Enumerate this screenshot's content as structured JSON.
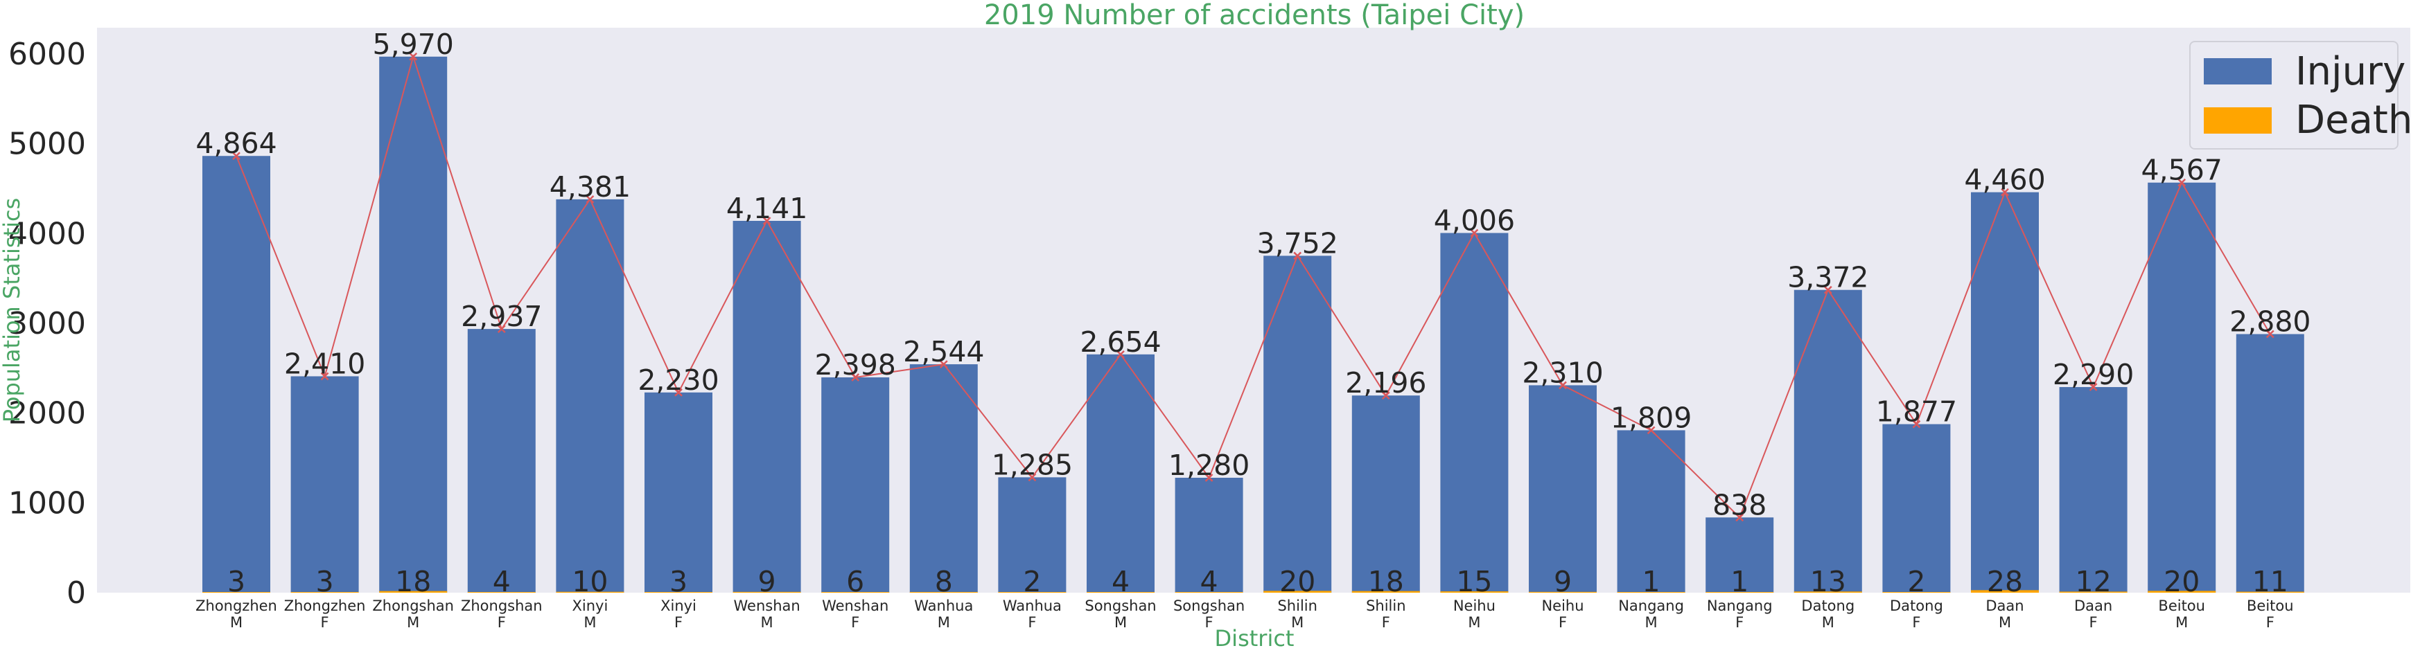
{
  "chart_data": {
    "type": "bar",
    "title": "2019 Number of accidents (Taipei City)",
    "xlabel": "District",
    "ylabel": "Population Statistics",
    "ylim": [
      0,
      6300
    ],
    "yticks": [
      "0",
      "1000",
      "2000",
      "3000",
      "4000",
      "5000",
      "6000"
    ],
    "ytick_values": [
      0,
      1000,
      2000,
      3000,
      4000,
      5000,
      6000
    ],
    "grid": false,
    "background": "#eaeaf2",
    "legend_position": "top-right",
    "categories": [
      [
        "Zhongzhen",
        "M"
      ],
      [
        "Zhongzhen",
        "F"
      ],
      [
        "Zhongshan",
        "M"
      ],
      [
        "Zhongshan",
        "F"
      ],
      [
        "Xinyi",
        "M"
      ],
      [
        "Xinyi",
        "F"
      ],
      [
        "Wenshan",
        "M"
      ],
      [
        "Wenshan",
        "F"
      ],
      [
        "Wanhua",
        "M"
      ],
      [
        "Wanhua",
        "F"
      ],
      [
        "Songshan",
        "M"
      ],
      [
        "Songshan",
        "F"
      ],
      [
        "Shilin",
        "M"
      ],
      [
        "Shilin",
        "F"
      ],
      [
        "Neihu",
        "M"
      ],
      [
        "Neihu",
        "F"
      ],
      [
        "Nangang",
        "M"
      ],
      [
        "Nangang",
        "F"
      ],
      [
        "Datong",
        "M"
      ],
      [
        "Datong",
        "F"
      ],
      [
        "Daan",
        "M"
      ],
      [
        "Daan",
        "F"
      ],
      [
        "Beitou",
        "M"
      ],
      [
        "Beitou",
        "F"
      ]
    ],
    "series": [
      {
        "name": "Injury",
        "color": "#4c72b0",
        "values": [
          4864,
          2410,
          5970,
          2937,
          4381,
          2230,
          4141,
          2398,
          2544,
          1285,
          2654,
          1280,
          3752,
          2196,
          4006,
          2310,
          1809,
          838,
          3372,
          1877,
          4460,
          2290,
          4567,
          2880
        ],
        "labels": [
          "4,864",
          "2,410",
          "5,970",
          "2,937",
          "4,381",
          "2,230",
          "4,141",
          "2,398",
          "2,544",
          "1,285",
          "2,654",
          "1,280",
          "3,752",
          "2,196",
          "4,006",
          "2,310",
          "1,809",
          "838",
          "3,372",
          "1,877",
          "4,460",
          "2,290",
          "4,567",
          "2,880"
        ]
      },
      {
        "name": "Death",
        "color": "#ffa500",
        "values": [
          3,
          3,
          18,
          4,
          10,
          3,
          9,
          6,
          8,
          2,
          4,
          4,
          20,
          18,
          15,
          9,
          1,
          1,
          13,
          2,
          28,
          12,
          20,
          11
        ]
      }
    ],
    "trend_line": {
      "series": "Injury",
      "color": "#d9575b",
      "marker": "x"
    }
  }
}
